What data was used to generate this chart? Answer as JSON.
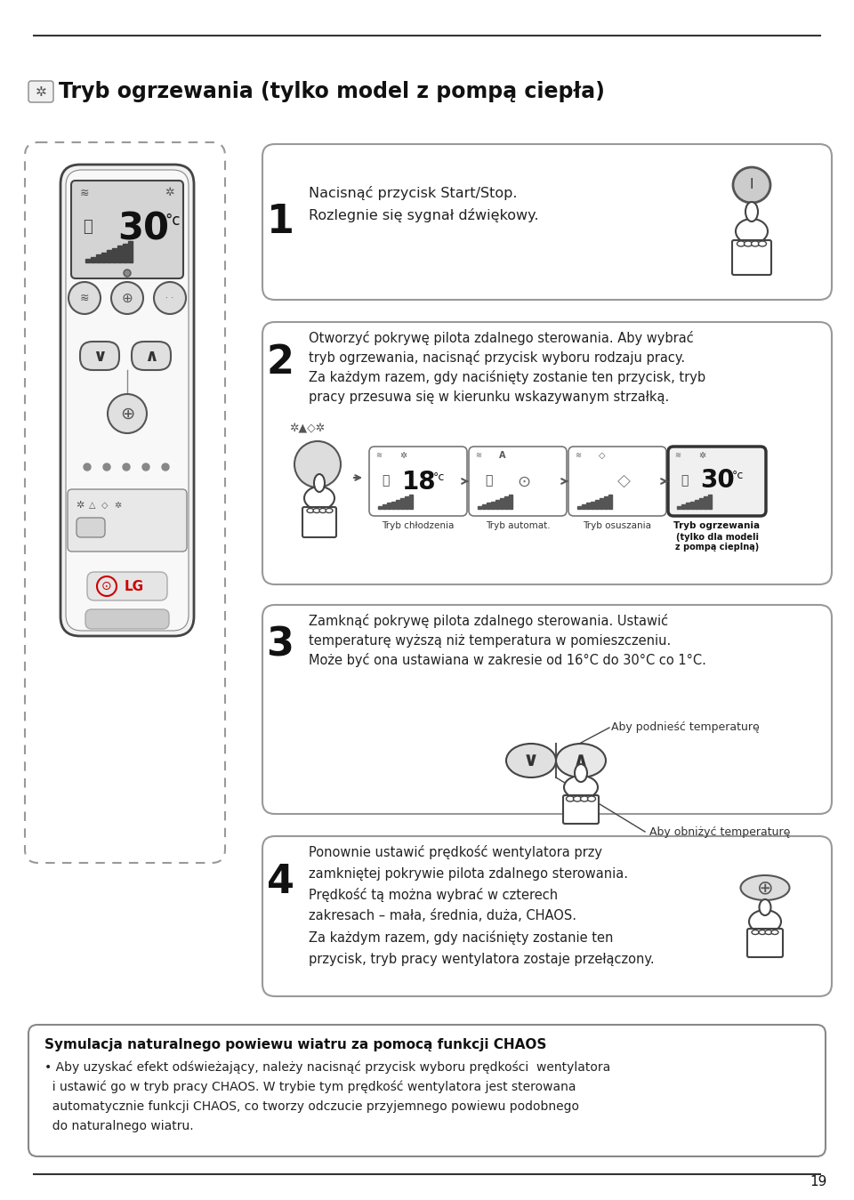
{
  "page_num": "19",
  "bg_color": "#ffffff",
  "title": "Tryb ogrzewania (tylko model z pompą ciepła)",
  "step1_text": [
    "Nacisnąć przycisk Start/Stop.",
    "Rozlegnie się sygnał dźwiękowy."
  ],
  "step2_text": [
    "Otworzyć pokrywę pilota zdalnego sterowania. Aby wybrać",
    "tryb ogrzewania, nacisnąć przycisk wyboru rodzaju pracy.",
    "Za każdym razem, gdy naciśnięty zostanie ten przycisk, tryb",
    "pracy przesuwa się w kierunku wskazywanym strzałką."
  ],
  "step3_text": [
    "Zamknąć pokrywę pilota zdalnego sterowania. Ustawić",
    "temperaturę wyższą niż temperatura w pomieszczeniu.",
    "Może być ona ustawiana w zakresie od 16°C do 30°C co 1°C."
  ],
  "step4_text": [
    "Ponownie ustawić prędkość wentylatora przy",
    "zamkniętej pokrywie pilota zdalnego sterowania.",
    "Prędkość tą można wybrać w czterech",
    "zakresach – mała, średnia, duża, CHAOS.",
    "Za każdym razem, gdy naciśnięty zostanie ten",
    "przycisk, tryb pracy wentylatora zostaje przełączony."
  ],
  "mode_labels": [
    "Tryb chłodzenia",
    "Tryb automat.",
    "Tryb osuszania",
    "Tryb ogrzewania"
  ],
  "mode_labels_extra": [
    "",
    "",
    "",
    "(tylko dla modeli\nz pompą cieplną)"
  ],
  "chaos_title": "Symulacja naturalnego powiewu wiatru za pomocą funkcji CHAOS",
  "chaos_lines": [
    "• Aby uzyskać efekt odświeżający, należy nacisnąć przycisk wyboru prędkości  wentylatora",
    "  i ustawić go w tryb pracy CHAOS. W trybie tym prędkość wentylatora jest sterowana",
    "  automatycznie funkcji CHAOS, co tworzy odczucie przyjemnego powiewu podobnego",
    "  do naturalnego wiatru."
  ]
}
